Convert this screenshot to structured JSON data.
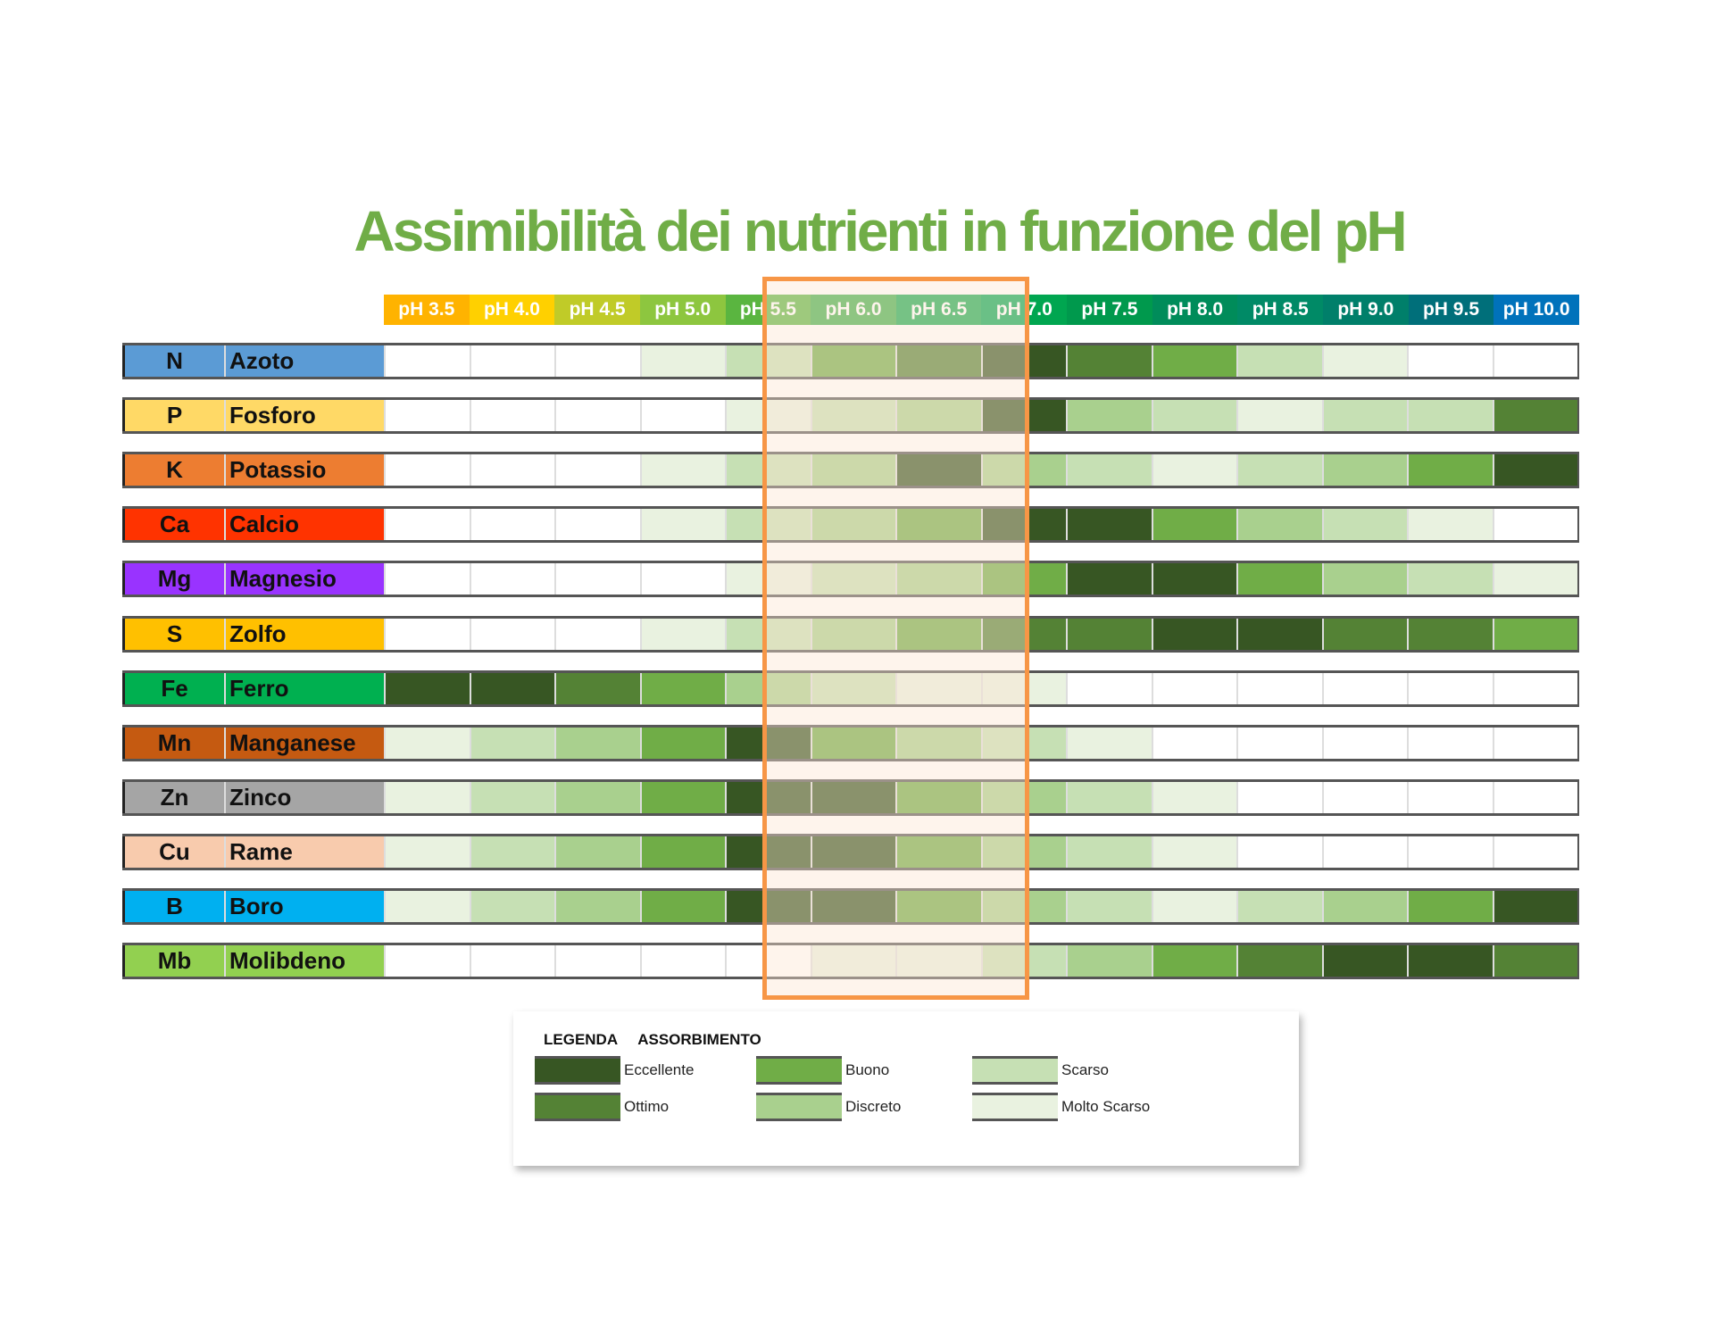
{
  "chart_data": {
    "type": "heatmap",
    "title": "Assimibilità dei nutrienti in funzione del pH",
    "x": [
      "pH 3.5",
      "pH 4.0",
      "pH 4.5",
      "pH 5.0",
      "pH 5.5",
      "pH 6.0",
      "pH 6.5",
      "pH 7.0",
      "pH 7.5",
      "pH 8.0",
      "pH 8.5",
      "pH 9.0",
      "pH 9.5",
      "pH 10.0"
    ],
    "header_colors": [
      "#ffb300",
      "#ffd000",
      "#c0cb28",
      "#8dc63f",
      "#5ab540",
      "#3fae49",
      "#16a94f",
      "#00a650",
      "#00994d",
      "#008c5a",
      "#008a66",
      "#007f6a",
      "#006f7a",
      "#0072bb"
    ],
    "level_scale": "0 = nessuno, 1 = Molto Scarso, 2 = Scarso, 3 = Discreto, 4 = Buono, 5 = Ottimo, 6 = Eccellente",
    "level_colors": [
      "#ffffff",
      "#e9f2e0",
      "#c6e0b4",
      "#a9d08e",
      "#70ad47",
      "#548235",
      "#375623"
    ],
    "highlight_range": [
      "pH 5.5",
      "pH 7.0"
    ],
    "highlight_color": "#f79646",
    "series": [
      {
        "symbol": "N",
        "name": "Azoto",
        "color": "#5b9bd5",
        "values": [
          0,
          0,
          0,
          1,
          2,
          4,
          5,
          6,
          5,
          4,
          2,
          1,
          0,
          0
        ]
      },
      {
        "symbol": "P",
        "name": "Fosforo",
        "color": "#ffd966",
        "values": [
          0,
          0,
          0,
          0,
          1,
          2,
          3,
          6,
          3,
          2,
          1,
          2,
          2,
          5
        ]
      },
      {
        "symbol": "K",
        "name": "Potassio",
        "color": "#ed7d31",
        "values": [
          0,
          0,
          0,
          1,
          2,
          3,
          6,
          3,
          2,
          1,
          2,
          3,
          4,
          6
        ]
      },
      {
        "symbol": "Ca",
        "name": "Calcio",
        "color": "#ff3300",
        "values": [
          0,
          0,
          0,
          1,
          2,
          3,
          4,
          6,
          6,
          4,
          3,
          2,
          1,
          0
        ]
      },
      {
        "symbol": "Mg",
        "name": "Magnesio",
        "color": "#9933ff",
        "values": [
          0,
          0,
          0,
          0,
          1,
          2,
          3,
          4,
          6,
          6,
          4,
          3,
          2,
          1
        ]
      },
      {
        "symbol": "S",
        "name": "Zolfo",
        "color": "#ffc000",
        "values": [
          0,
          0,
          0,
          1,
          2,
          3,
          4,
          5,
          5,
          6,
          6,
          5,
          5,
          4
        ]
      },
      {
        "symbol": "Fe",
        "name": "Ferro",
        "color": "#00b050",
        "values": [
          6,
          6,
          5,
          4,
          3,
          2,
          1,
          1,
          0,
          0,
          0,
          0,
          0,
          0
        ]
      },
      {
        "symbol": "Mn",
        "name": "Manganese",
        "color": "#c55a11",
        "values": [
          1,
          2,
          3,
          4,
          6,
          4,
          3,
          2,
          1,
          0,
          0,
          0,
          0,
          0
        ]
      },
      {
        "symbol": "Zn",
        "name": "Zinco",
        "color": "#a5a5a5",
        "values": [
          1,
          2,
          3,
          4,
          6,
          6,
          4,
          3,
          2,
          1,
          0,
          0,
          0,
          0
        ]
      },
      {
        "symbol": "Cu",
        "name": "Rame",
        "color": "#f8cbad",
        "values": [
          1,
          2,
          3,
          4,
          6,
          6,
          4,
          3,
          2,
          1,
          0,
          0,
          0,
          0
        ]
      },
      {
        "symbol": "B",
        "name": "Boro",
        "color": "#00b0f0",
        "values": [
          1,
          2,
          3,
          4,
          6,
          6,
          4,
          3,
          2,
          1,
          2,
          3,
          4,
          6
        ]
      },
      {
        "symbol": "Mb",
        "name": "Molibdeno",
        "color": "#92d050",
        "values": [
          0,
          0,
          0,
          0,
          0,
          1,
          1,
          2,
          3,
          4,
          5,
          6,
          6,
          5
        ]
      }
    ],
    "legend": {
      "title": "LEGENDA",
      "subtitle": "ASSORBIMENTO",
      "items": [
        {
          "label": "Eccellente",
          "level": 6
        },
        {
          "label": "Ottimo",
          "level": 5
        },
        {
          "label": "Buono",
          "level": 4
        },
        {
          "label": "Discreto",
          "level": 3
        },
        {
          "label": "Scarso",
          "level": 2
        },
        {
          "label": "Molto Scarso",
          "level": 1
        }
      ]
    }
  }
}
